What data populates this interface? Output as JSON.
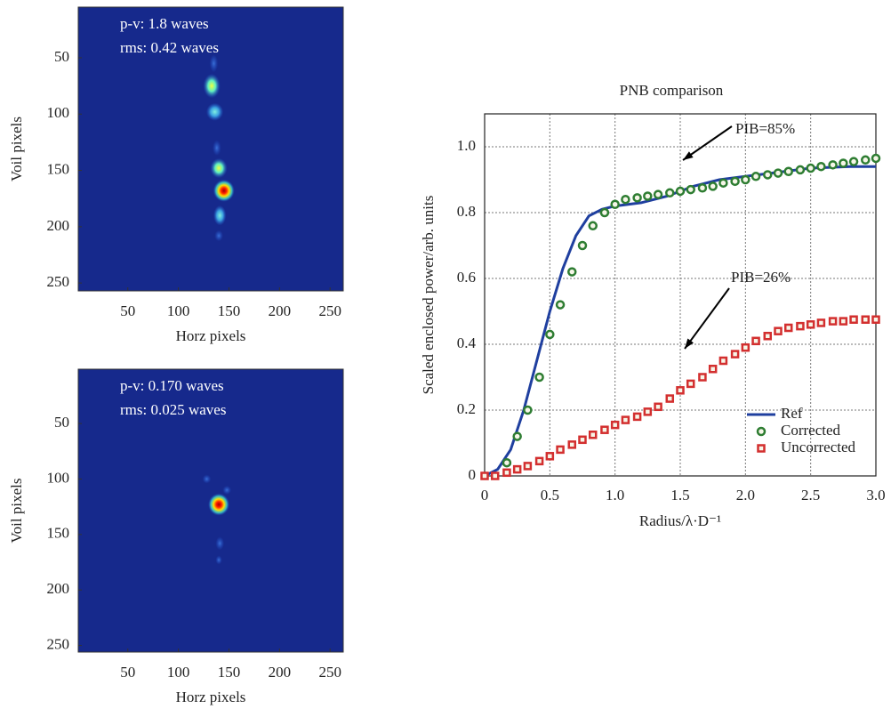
{
  "chart_data": [
    {
      "type": "image",
      "colormap": "jet",
      "xlabel": "Horz pixels",
      "ylabel": "Voil pixels",
      "annotations": [
        "p-v: 1.8 waves",
        "rms: 0.42 waves"
      ],
      "xlim": [
        1,
        263
      ],
      "ylim": [
        5,
        257
      ],
      "yaxis_inverted": true,
      "xticks": [
        50,
        100,
        150,
        200,
        250
      ],
      "yticks": [
        50,
        100,
        150,
        200,
        250
      ]
    },
    {
      "type": "image",
      "colormap": "jet",
      "xlabel": "Horz pixels",
      "ylabel": "Voil pixels",
      "annotations": [
        "p-v: 0.170 waves",
        "rms: 0.025 waves"
      ],
      "xlim": [
        1,
        263
      ],
      "ylim": [
        1,
        256
      ],
      "yaxis_inverted": true,
      "xticks": [
        50,
        100,
        150,
        200,
        250
      ],
      "yticks": [
        50,
        100,
        150,
        200,
        250
      ]
    },
    {
      "type": "line",
      "title": "PNB comparison",
      "xlabel": "Radius/λ·D⁻¹",
      "ylabel": "Scaled enclosed power/arb. units",
      "xlim": [
        0,
        3
      ],
      "ylim": [
        0,
        1.1
      ],
      "xticks": [
        0,
        0.5,
        {
          "value": 1,
          "label": "1.0"
        },
        1.5,
        {
          "value": 2,
          "label": "2.0"
        },
        2.5,
        {
          "value": 3,
          "label": "3.0"
        }
      ],
      "yticks": [
        0,
        0.2,
        0.4,
        0.6,
        0.8,
        {
          "value": 1,
          "label": "1.0"
        }
      ],
      "grid": true,
      "legend": "lower right",
      "annotations": [
        "PIB=85%",
        "PIB=26%"
      ],
      "series": [
        {
          "name": "Ref",
          "style": "line",
          "color": "#1f3f9f",
          "x": [
            0,
            0.1,
            0.2,
            0.3,
            0.4,
            0.5,
            0.6,
            0.7,
            0.8,
            0.9,
            1.0,
            1.2,
            1.4,
            1.6,
            1.8,
            2.0,
            2.2,
            2.5,
            2.8,
            3.0
          ],
          "values": [
            0,
            0.02,
            0.08,
            0.2,
            0.35,
            0.5,
            0.63,
            0.73,
            0.79,
            0.81,
            0.82,
            0.83,
            0.85,
            0.88,
            0.9,
            0.91,
            0.92,
            0.935,
            0.94,
            0.94
          ]
        },
        {
          "name": "Corrected",
          "style": "circle",
          "color": "#2e7d32",
          "x": [
            0.17,
            0.25,
            0.33,
            0.42,
            0.5,
            0.58,
            0.67,
            0.75,
            0.83,
            0.92,
            1.0,
            1.08,
            1.17,
            1.25,
            1.33,
            1.42,
            1.5,
            1.58,
            1.67,
            1.75,
            1.83,
            1.92,
            2.0,
            2.08,
            2.17,
            2.25,
            2.33,
            2.42,
            2.5,
            2.58,
            2.67,
            2.75,
            2.83,
            2.92,
            3.0
          ],
          "values": [
            0.04,
            0.12,
            0.2,
            0.3,
            0.43,
            0.52,
            0.62,
            0.7,
            0.76,
            0.8,
            0.825,
            0.84,
            0.845,
            0.85,
            0.855,
            0.86,
            0.865,
            0.87,
            0.875,
            0.88,
            0.89,
            0.895,
            0.9,
            0.91,
            0.915,
            0.92,
            0.925,
            0.93,
            0.935,
            0.94,
            0.945,
            0.95,
            0.955,
            0.96,
            0.965
          ]
        },
        {
          "name": "Uncorrected",
          "style": "square",
          "color": "#d32f2f",
          "x": [
            0,
            0.08,
            0.17,
            0.25,
            0.33,
            0.42,
            0.5,
            0.58,
            0.67,
            0.75,
            0.83,
            0.92,
            1.0,
            1.08,
            1.17,
            1.25,
            1.33,
            1.42,
            1.5,
            1.58,
            1.67,
            1.75,
            1.83,
            1.92,
            2.0,
            2.08,
            2.17,
            2.25,
            2.33,
            2.42,
            2.5,
            2.58,
            2.67,
            2.75,
            2.83,
            2.92,
            3.0
          ],
          "values": [
            0,
            0,
            0.01,
            0.02,
            0.03,
            0.045,
            0.06,
            0.08,
            0.095,
            0.11,
            0.125,
            0.14,
            0.155,
            0.17,
            0.18,
            0.195,
            0.21,
            0.235,
            0.26,
            0.28,
            0.3,
            0.325,
            0.35,
            0.37,
            0.39,
            0.41,
            0.425,
            0.44,
            0.45,
            0.455,
            0.46,
            0.465,
            0.47,
            0.47,
            0.475,
            0.475,
            0.475
          ]
        }
      ]
    }
  ]
}
